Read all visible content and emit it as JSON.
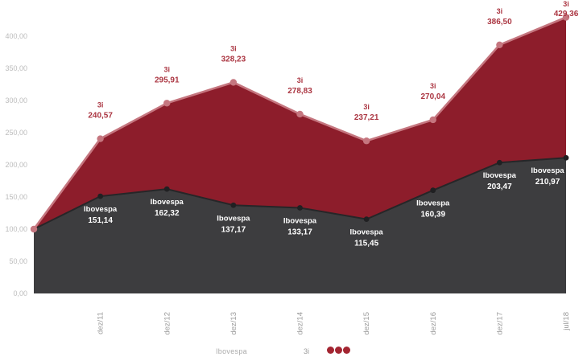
{
  "chart_data": {
    "type": "area",
    "title": "",
    "x_categories": [
      "",
      "dez/11",
      "dez/12",
      "dez/13",
      "dez/14",
      "dez/15",
      "dez/16",
      "dez/17",
      "jul/18"
    ],
    "series": [
      {
        "name": "3i",
        "values": [
          100.0,
          240.57,
          295.91,
          328.23,
          278.83,
          237.21,
          270.04,
          386.5,
          429.36
        ],
        "value_labels": [
          "",
          "240,57",
          "295,91",
          "328,23",
          "278,83",
          "237,21",
          "270,04",
          "386,50",
          "429,36"
        ],
        "area_color": "#8d1d2b",
        "line_color": "#c5767f",
        "marker_color": "#c5767f",
        "label_color": "#ab3642"
      },
      {
        "name": "Ibovespa",
        "values": [
          100.0,
          151.14,
          162.32,
          137.17,
          133.17,
          115.45,
          160.39,
          203.47,
          210.97
        ],
        "value_labels": [
          "",
          "151,14",
          "162,32",
          "137,17",
          "133,17",
          "115,45",
          "160,39",
          "203,47",
          "210,97"
        ],
        "area_color": "#3d3d3f",
        "line_color": "#262628",
        "marker_color": "#202022",
        "label_color": "#ffffff"
      }
    ],
    "y_ticks": [
      {
        "value": 0,
        "label": "0,00"
      },
      {
        "value": 50,
        "label": "50,00"
      },
      {
        "value": 100,
        "label": "100,00"
      },
      {
        "value": 150,
        "label": "150,00"
      },
      {
        "value": 200,
        "label": "200,00"
      },
      {
        "value": 250,
        "label": "250,00"
      },
      {
        "value": 300,
        "label": "300,00"
      },
      {
        "value": 350,
        "label": "350,00"
      },
      {
        "value": 400,
        "label": "400,00"
      }
    ],
    "ylim": [
      0,
      440
    ],
    "grid": false,
    "legend_position": "bottom",
    "legend": [
      {
        "label": "Ibovespa",
        "color": "#ababab"
      },
      {
        "label": "3i",
        "color": "#9a9a9a",
        "logo_dots_color": "#a32531"
      }
    ]
  }
}
